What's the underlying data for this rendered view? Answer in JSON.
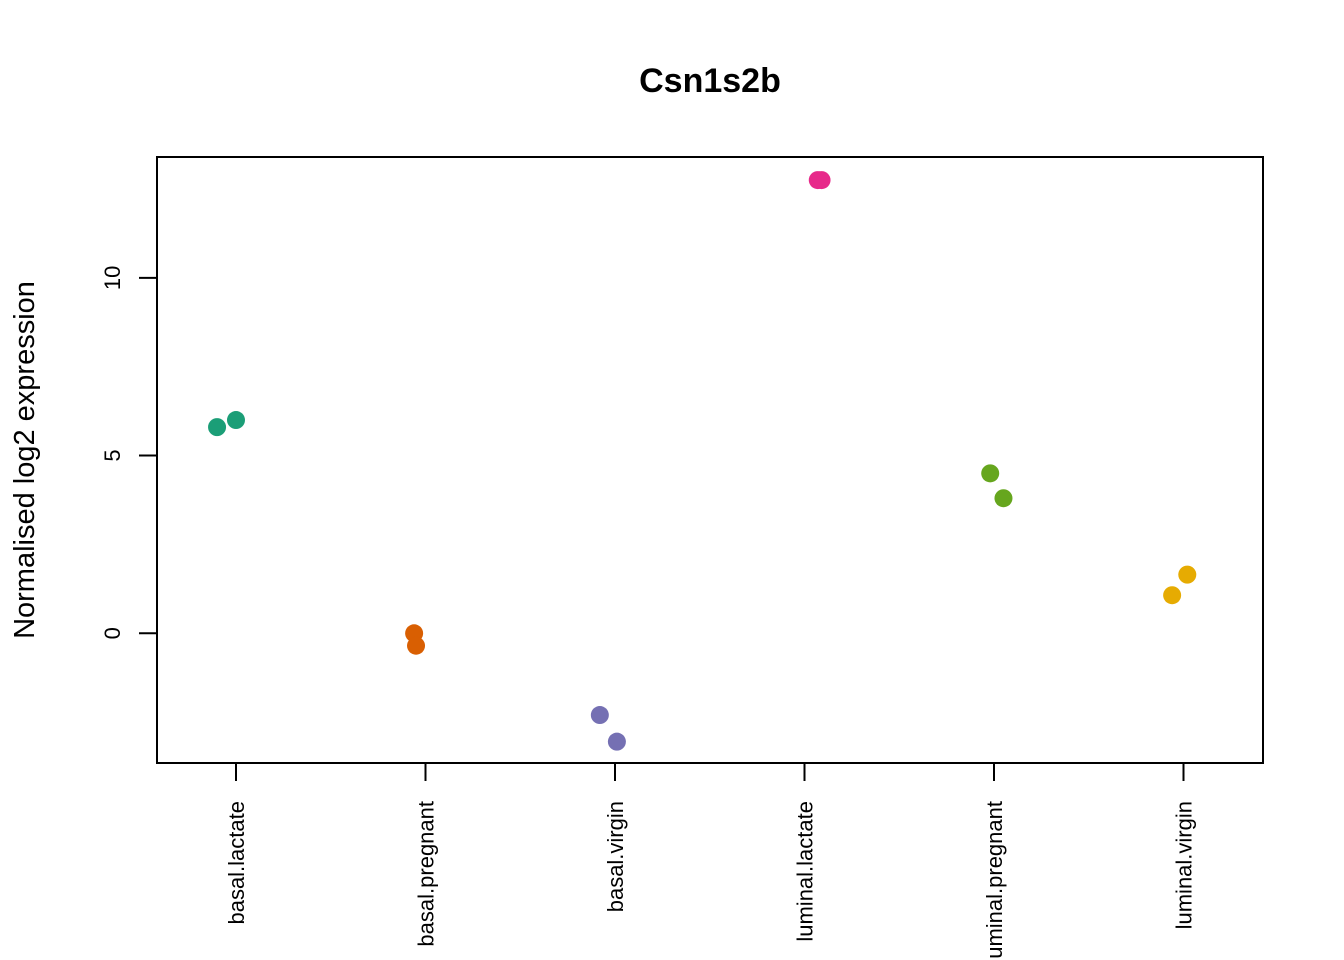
{
  "chart_data": {
    "type": "scatter",
    "title": "Csn1s2b",
    "xlabel": "",
    "ylabel": "Normalised log2 expression",
    "categories": [
      "basal.lactate",
      "basal.pregnant",
      "basal.virgin",
      "luminal.lactate",
      "luminal.pregnant",
      "luminal.virgin"
    ],
    "ylim": [
      -3.65,
      13.4
    ],
    "yticks": [
      0,
      5,
      10
    ],
    "grid": false,
    "legend": "none",
    "colors": [
      "#1B9E77",
      "#D95F02",
      "#7570B3",
      "#E7298A",
      "#66A61E",
      "#E6AB02"
    ],
    "series": [
      {
        "category": "basal.lactate",
        "points": [
          {
            "jitter": -0.1,
            "y": 5.8
          },
          {
            "jitter": 0.0,
            "y": 6.0
          }
        ]
      },
      {
        "category": "basal.pregnant",
        "points": [
          {
            "jitter": -0.06,
            "y": 0.0
          },
          {
            "jitter": -0.05,
            "y": -0.35
          }
        ]
      },
      {
        "category": "basal.virgin",
        "points": [
          {
            "jitter": -0.08,
            "y": -2.3
          },
          {
            "jitter": 0.01,
            "y": -3.05
          }
        ]
      },
      {
        "category": "luminal.lactate",
        "points": [
          {
            "jitter": 0.07,
            "y": 12.75
          },
          {
            "jitter": 0.09,
            "y": 12.75
          }
        ]
      },
      {
        "category": "luminal.pregnant",
        "points": [
          {
            "jitter": -0.02,
            "y": 4.5
          },
          {
            "jitter": 0.05,
            "y": 3.8
          }
        ]
      },
      {
        "category": "luminal.virgin",
        "points": [
          {
            "jitter": -0.06,
            "y": 1.07
          },
          {
            "jitter": 0.02,
            "y": 1.65
          }
        ]
      }
    ]
  }
}
